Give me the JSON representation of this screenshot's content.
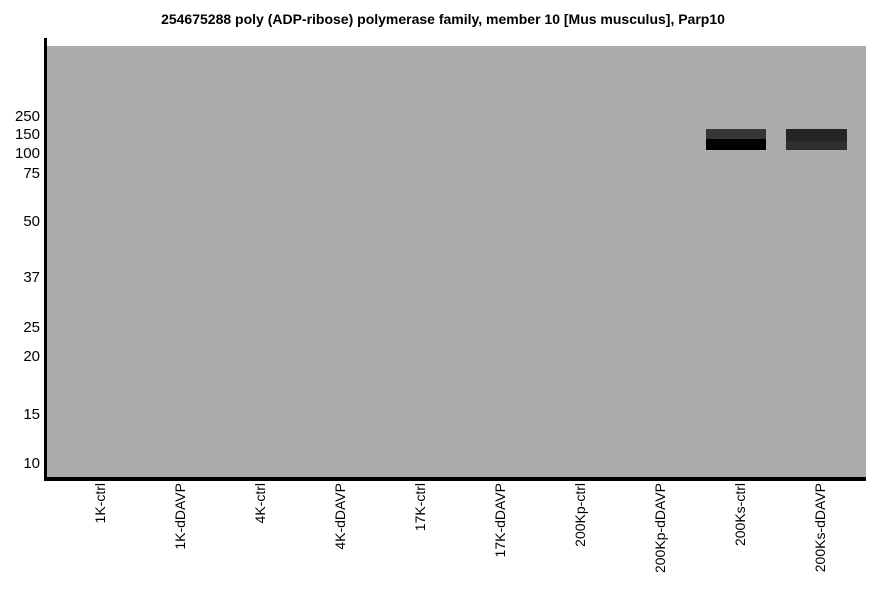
{
  "title": "254675288 poly (ADP-ribose) polymerase family, member 10 [Mus musculus], Parp10",
  "y_axis": {
    "markers": [
      "250",
      "150",
      "100",
      "75",
      "50",
      "37",
      "25",
      "20",
      "15",
      "10"
    ]
  },
  "lanes": [
    "1K-ctrl",
    "1K-dDAVP",
    "4K-ctrl",
    "4K-dDAVP",
    "17K-ctrl",
    "17K-dDAVP",
    "200Kp-ctrl",
    "200Kp-dDAVP",
    "200Ks-ctrl",
    "200Ks-dDAVP"
  ],
  "colors": {
    "plot_background": "#ababab",
    "axis": "#000000",
    "band_200Ks_ctrl_top": "#363636",
    "band_200Ks_ctrl_bottom": "#000000",
    "band_200Ks_dDAVP_top": "#242424",
    "band_200Ks_dDAVP_bottom": "#2e2e2e"
  },
  "chart_data": {
    "type": "heatmap",
    "subtype": "western-blot-gel-image",
    "title": "254675288 poly (ADP-ribose) polymerase family, member 10 [Mus musculus], Parp10",
    "x_categories": [
      "1K-ctrl",
      "1K-dDAVP",
      "4K-ctrl",
      "4K-dDAVP",
      "17K-ctrl",
      "17K-dDAVP",
      "200Kp-ctrl",
      "200Kp-dDAVP",
      "200Ks-ctrl",
      "200Ks-dDAVP"
    ],
    "y_tick_labels": [
      250,
      150,
      100,
      75,
      50,
      37,
      25,
      20,
      15,
      10
    ],
    "y_scale": "log",
    "y_axis_range": [
      10,
      300
    ],
    "grid": false,
    "legend": false,
    "background": "#ababab",
    "bands": [
      {
        "lane": "200Ks-ctrl",
        "lane_index": 8,
        "mw_range_kda": [
          110,
          170
        ],
        "intensity": "very strong",
        "colors": [
          "#363636",
          "#000000"
        ]
      },
      {
        "lane": "200Ks-dDAVP",
        "lane_index": 9,
        "mw_range_kda": [
          110,
          170
        ],
        "intensity": "strong",
        "colors": [
          "#242424",
          "#2e2e2e"
        ]
      }
    ],
    "empty_lanes": [
      "1K-ctrl",
      "1K-dDAVP",
      "4K-ctrl",
      "4K-dDAVP",
      "17K-ctrl",
      "17K-dDAVP",
      "200Kp-ctrl",
      "200Kp-dDAVP"
    ]
  }
}
